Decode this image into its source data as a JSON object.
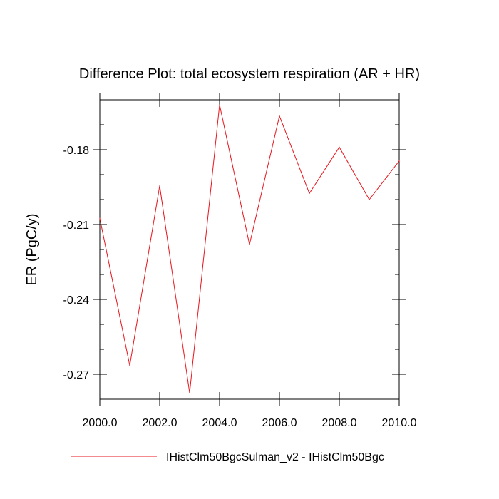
{
  "chart_data": {
    "type": "line",
    "title": "Difference Plot: total ecosystem respiration (AR + HR)",
    "xlabel": "",
    "ylabel": "ER  (PgC/y)",
    "xlim": [
      2000,
      2010
    ],
    "ylim": [
      -0.28,
      -0.16
    ],
    "xticks": [
      "2000.0",
      "2002.0",
      "2004.0",
      "2006.0",
      "2008.0",
      "2010.0"
    ],
    "yticks": [
      "-0.18",
      "-0.21",
      "-0.24",
      "-0.27"
    ],
    "grid": false,
    "legend_position": "bottom",
    "series": [
      {
        "name": "IHistClm50BgcSulman_v2 - IHistClm50Bgc",
        "color": "#e8141b",
        "x": [
          2000,
          2001,
          2002,
          2003,
          2004,
          2005,
          2006,
          2007,
          2008,
          2009,
          2010
        ],
        "y": [
          -0.2075,
          -0.2665,
          -0.1945,
          -0.2775,
          -0.162,
          -0.218,
          -0.1665,
          -0.1975,
          -0.179,
          -0.2,
          -0.1845
        ]
      }
    ]
  }
}
